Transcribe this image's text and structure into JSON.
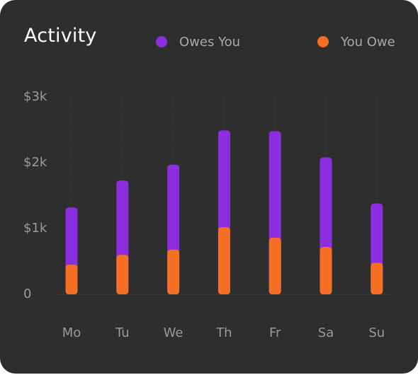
{
  "chart_data": {
    "type": "bar",
    "stacked": true,
    "title": "Activity",
    "categories": [
      "Mo",
      "Tu",
      "We",
      "Th",
      "Fr",
      "Sa",
      "Su"
    ],
    "series": [
      {
        "name": "You Owe",
        "color": "#f56f25",
        "values": [
          450,
          600,
          680,
          1020,
          860,
          720,
          480
        ]
      },
      {
        "name": "Owes You",
        "color": "#8c2ee0",
        "values": [
          870,
          1130,
          1290,
          1470,
          1620,
          1360,
          900
        ]
      }
    ],
    "legend_order": [
      "Owes You",
      "You Owe"
    ],
    "y_ticks": [
      {
        "value": 0,
        "label": "0"
      },
      {
        "value": 1000,
        "label": "$1k"
      },
      {
        "value": 2000,
        "label": "$2k"
      },
      {
        "value": 3000,
        "label": "$3k"
      }
    ],
    "ylim": [
      0,
      3000
    ],
    "grid": "vertical-dotted",
    "legend_position": "top-right",
    "colors": {
      "background": "#2e2e2e",
      "text": "#9a9a9a",
      "title": "#ffffff"
    }
  }
}
